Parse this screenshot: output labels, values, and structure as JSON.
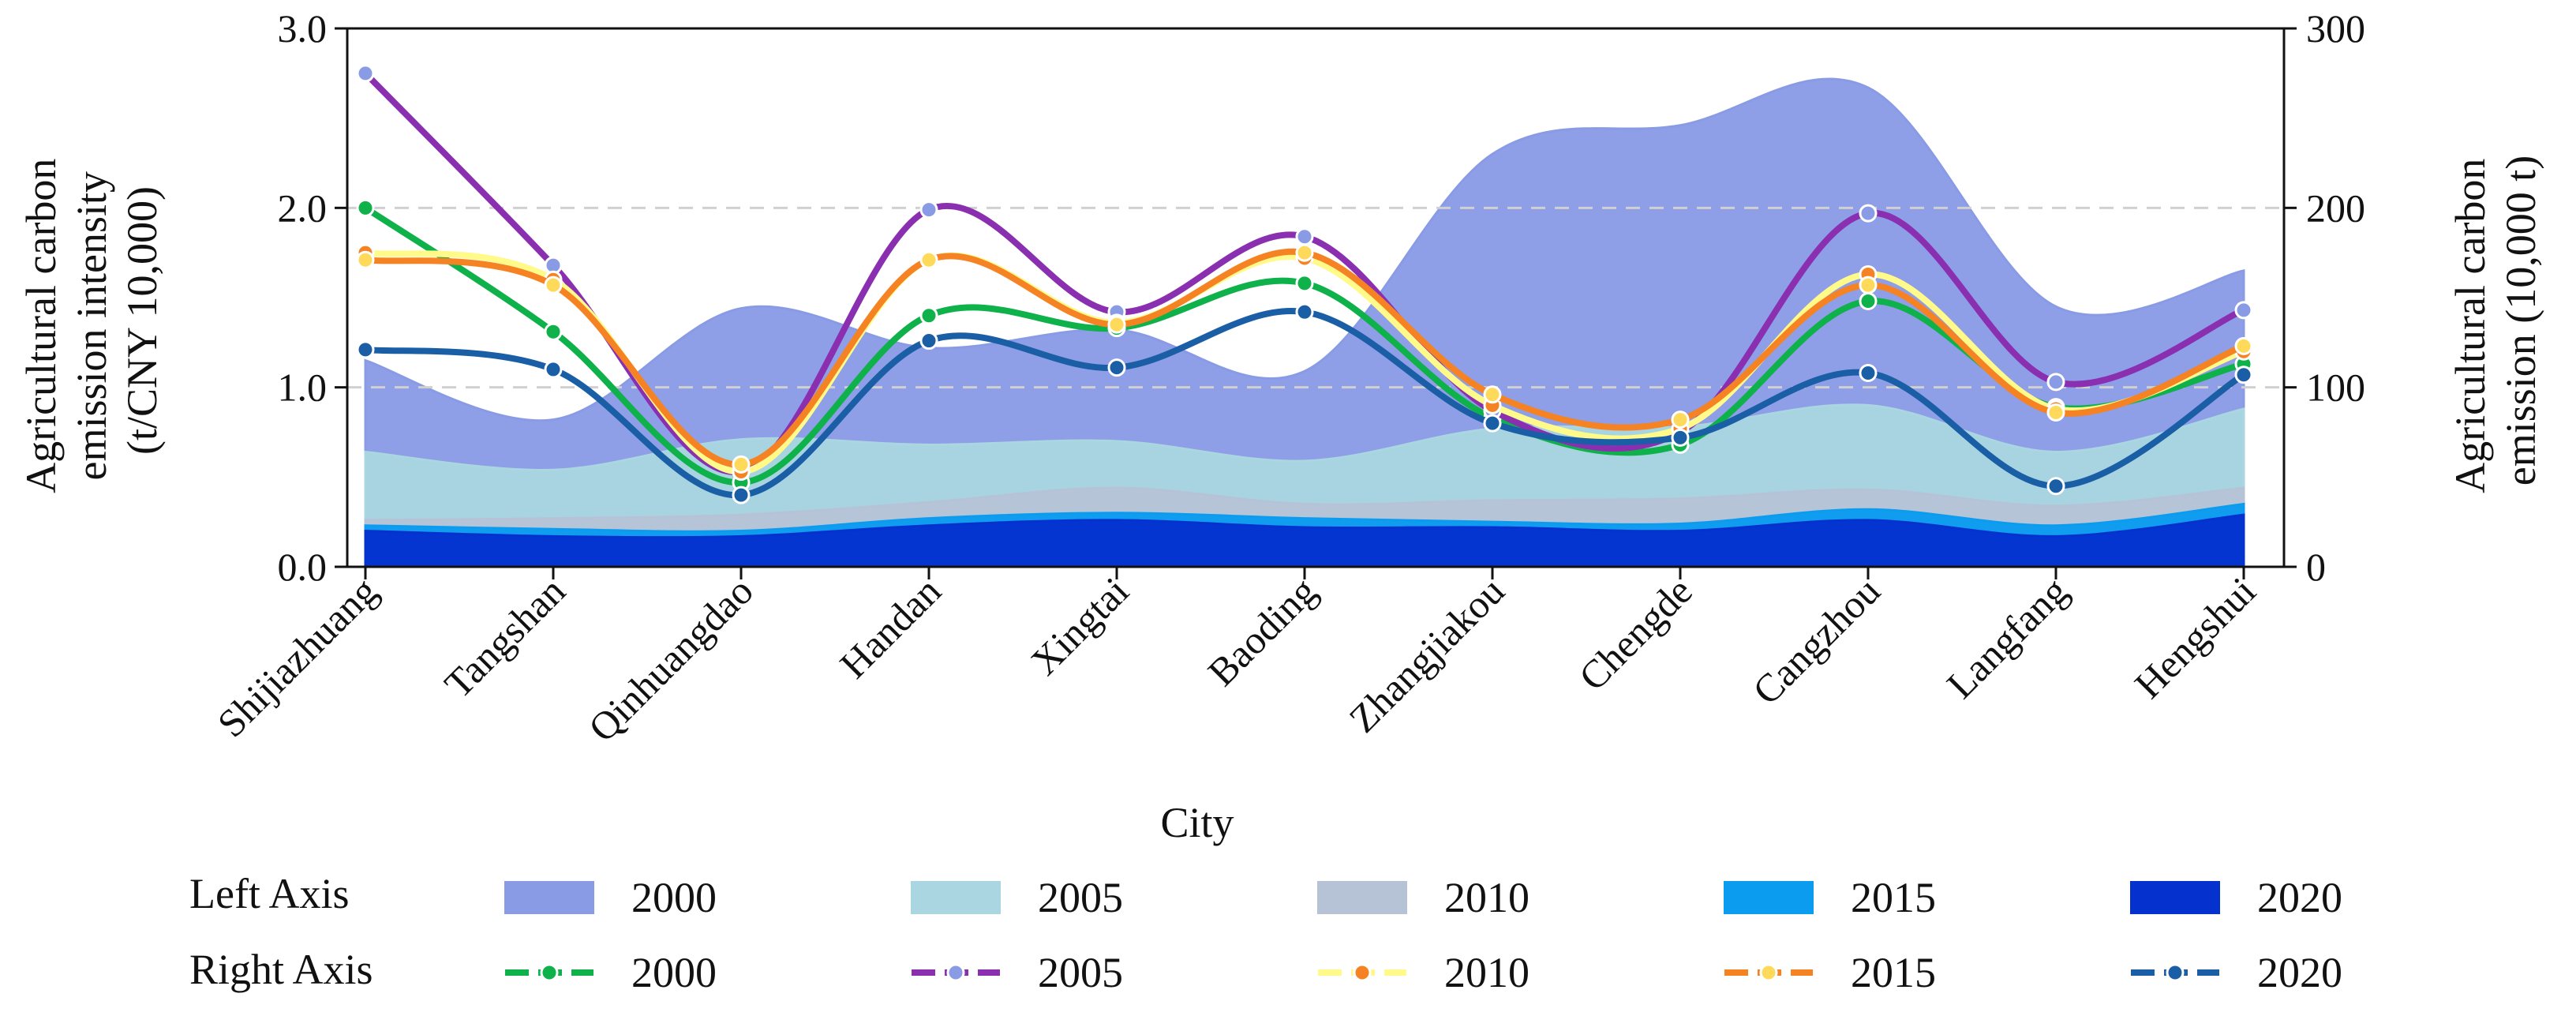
{
  "chart_data": {
    "type": "area+line",
    "xlabel": "City",
    "categories": [
      "Shijiazhuang",
      "Tangshan",
      "Qinhuangdao",
      "Handan",
      "Xingtai",
      "Baoding",
      "Zhangjiakou",
      "Chengde",
      "Cangzhou",
      "Langfang",
      "Hengshui"
    ],
    "left_axis": {
      "label_lines": [
        "Agricultural carbon",
        "emission intensity",
        "(t/CNY 10,000)"
      ],
      "ylim": [
        0,
        3.0
      ],
      "ticks": [
        "0.0",
        "1.0",
        "2.0",
        "3.0"
      ]
    },
    "right_axis": {
      "label_lines": [
        "Agricultural carbon",
        "emission (10,000 t)"
      ],
      "ylim": [
        0,
        300
      ],
      "ticks": [
        "0",
        "100",
        "200",
        "300"
      ]
    },
    "area_series": [
      {
        "name": "2000",
        "color": "#8a9be6",
        "values": [
          1.15,
          0.82,
          1.44,
          1.22,
          1.32,
          1.09,
          2.3,
          2.46,
          2.67,
          1.45,
          1.65
        ]
      },
      {
        "name": "2005",
        "color": "#a9d6e0",
        "values": [
          0.64,
          0.54,
          0.71,
          0.68,
          0.7,
          0.59,
          0.77,
          0.78,
          0.9,
          0.64,
          0.88
        ]
      },
      {
        "name": "2010",
        "color": "#b6c3d7",
        "values": [
          0.26,
          0.27,
          0.29,
          0.36,
          0.44,
          0.35,
          0.37,
          0.38,
          0.43,
          0.34,
          0.44
        ]
      },
      {
        "name": "2015",
        "color": "#0b9cf0",
        "values": [
          0.23,
          0.21,
          0.2,
          0.27,
          0.3,
          0.27,
          0.25,
          0.24,
          0.32,
          0.23,
          0.35
        ]
      },
      {
        "name": "2020",
        "color": "#0532cf",
        "values": [
          0.2,
          0.17,
          0.17,
          0.23,
          0.26,
          0.22,
          0.22,
          0.2,
          0.26,
          0.17,
          0.29
        ]
      }
    ],
    "line_series": [
      {
        "name": "2000",
        "color": "#0fb14a",
        "values": [
          200,
          131,
          47,
          140,
          133,
          158,
          83,
          68,
          148,
          89,
          113
        ]
      },
      {
        "name": "2005",
        "color": "#8a2fb0",
        "values": [
          275,
          168,
          53,
          199,
          142,
          184,
          87,
          75,
          197,
          103,
          143
        ]
      },
      {
        "name": "2010",
        "color": "#fffa8a",
        "values": [
          175,
          160,
          53,
          171,
          136,
          172,
          90,
          77,
          163,
          88,
          120
        ]
      },
      {
        "name": "2015",
        "color": "#f58323",
        "values": [
          171,
          157,
          57,
          171,
          135,
          175,
          96,
          82,
          157,
          86,
          123
        ]
      },
      {
        "name": "2020",
        "color": "#1a5ea6",
        "values": [
          121,
          110,
          40,
          126,
          111,
          142,
          80,
          72,
          108,
          45,
          107
        ]
      }
    ],
    "marker_colors": {
      "2000": "#0fb14a",
      "2005": "#8a9be6",
      "2010": "#f58323",
      "2015": "#ffd95a",
      "2020": "#1a5ea6"
    },
    "grid": "dashed at 1.0 and 2.0 (left axis)",
    "legend": {
      "placement": "bottom",
      "left_title": "Left Axis",
      "right_title": "Right Axis"
    }
  }
}
